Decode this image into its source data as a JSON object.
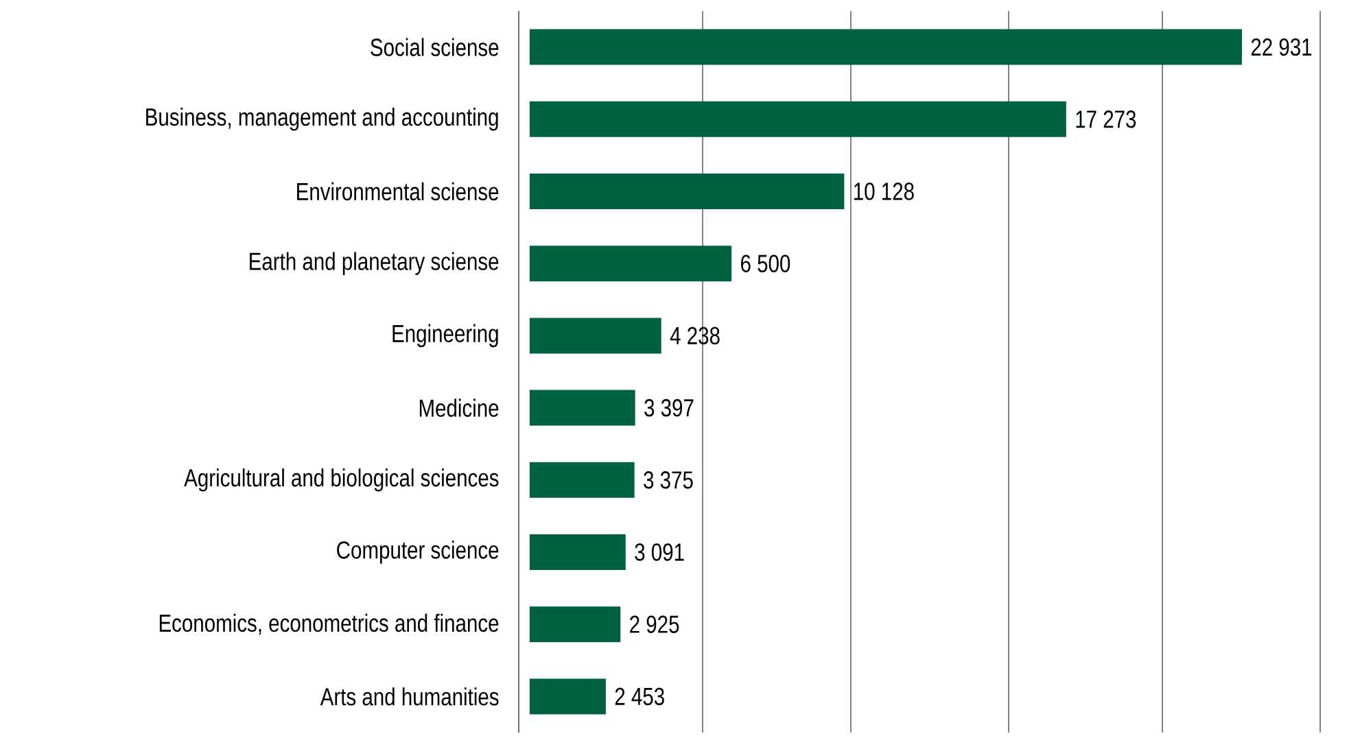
{
  "chart_data": {
    "type": "bar",
    "orientation": "horizontal",
    "color": "#006241",
    "categories": [
      "Social sciense",
      "Business, management and accounting",
      "Environmental sciense",
      "Earth and planetary sciense",
      "Engineering",
      "Medicine",
      "Agricultural and biological sciences",
      "Computer science",
      "Economics, econometrics and finance",
      "Arts and humanities"
    ],
    "values": [
      22931,
      17273,
      10128,
      6500,
      4238,
      3397,
      3375,
      3091,
      2925,
      2453
    ],
    "value_labels": [
      "22 931",
      "17 273",
      "10 128",
      "6 500",
      "4 238",
      "3 397",
      "3 375",
      "3 091",
      "2 925",
      "2 453"
    ],
    "xlim": [
      -350,
      25450
    ],
    "xticks": [
      {
        "value": 5570,
        "label": null
      },
      {
        "value": 10340,
        "label": null
      },
      {
        "value": 15420,
        "label": null
      },
      {
        "value": 20370,
        "label": null
      },
      {
        "value": 25450,
        "label": null
      }
    ],
    "grid": "x",
    "tick_labels": "y"
  }
}
